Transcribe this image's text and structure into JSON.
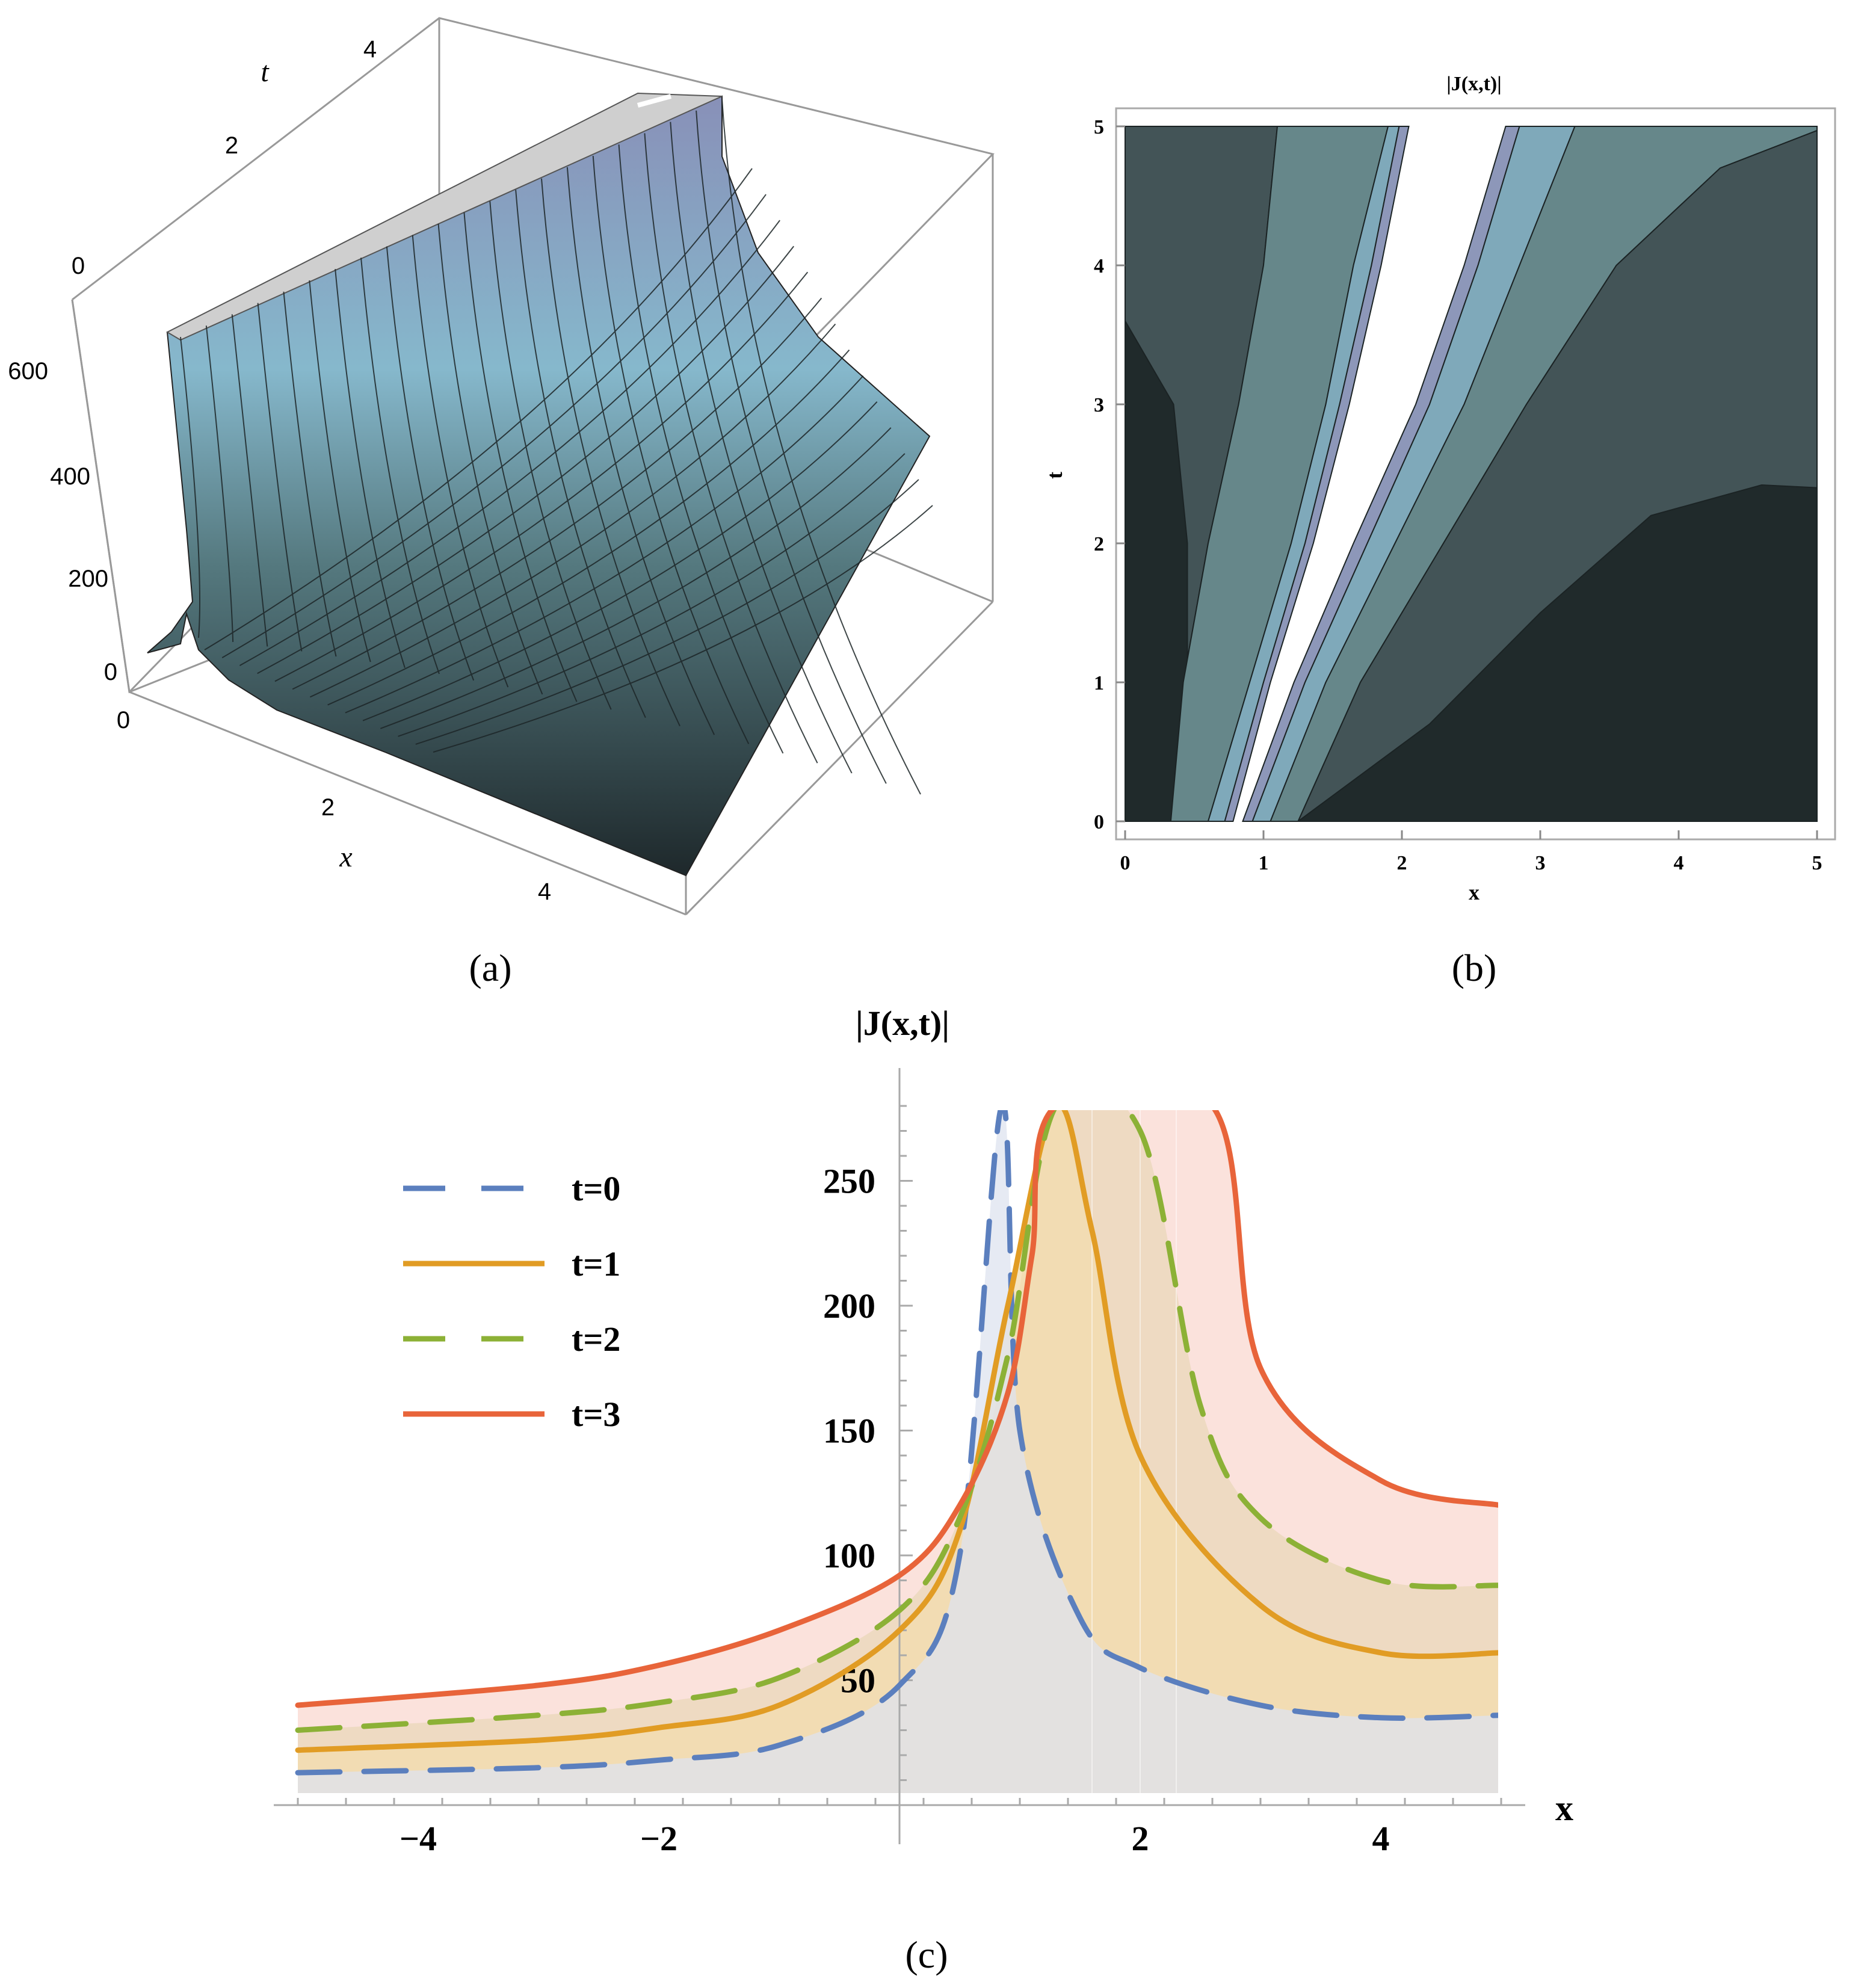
{
  "panels": {
    "a": {
      "label": "(a)"
    },
    "b": {
      "label": "(b)"
    },
    "c": {
      "label": "(c)"
    }
  },
  "chart_data": [
    {
      "id": "a",
      "type": "surface3d",
      "title": "",
      "xlabel": "x",
      "ylabel": "t",
      "zlabel": "",
      "x_ticks": [
        "0",
        "2",
        "4"
      ],
      "t_ticks": [
        "0",
        "2",
        "4"
      ],
      "z_ticks": [
        "0",
        "200",
        "400",
        "600"
      ],
      "xlim": [
        0,
        5
      ],
      "tlim": [
        0,
        5
      ],
      "zlim": [
        0,
        700
      ],
      "description_of_series": "|J(x,t)| surface, ridge rising near x≈0.8–1.8 across t"
    },
    {
      "id": "b",
      "type": "contour",
      "title": "|J(x,t)|",
      "xlabel": "x",
      "ylabel": "t",
      "x_ticks": [
        "0",
        "1",
        "2",
        "3",
        "4",
        "5"
      ],
      "y_ticks": [
        "0",
        "1",
        "2",
        "3",
        "4",
        "5"
      ],
      "xlim": [
        0,
        5
      ],
      "ylim": [
        0,
        5
      ]
    },
    {
      "id": "c",
      "type": "line",
      "title": "|J(x,t)|",
      "xlabel": "x",
      "ylabel": "",
      "xlim": [
        -5,
        5
      ],
      "ylim": [
        0,
        290
      ],
      "x_ticks": [
        "−4",
        "−2",
        "2",
        "4"
      ],
      "y_ticks": [
        "50",
        "100",
        "150",
        "200",
        "250"
      ],
      "legend_position": "top-left",
      "series": [
        {
          "name": "t=0",
          "style": "dashed",
          "color": "#5b7fbe",
          "fill": "#dde3ef",
          "x": [
            -5,
            -3,
            -2,
            -1,
            0,
            0.5,
            0.85,
            1.0,
            1.5,
            2,
            3,
            4,
            5
          ],
          "y": [
            13,
            15,
            18,
            24,
            48,
            100,
            280,
            150,
            75,
            55,
            40,
            35,
            36
          ]
        },
        {
          "name": "t=1",
          "style": "solid",
          "color": "#e19c24",
          "fill": "#f3dcae",
          "x": [
            -5,
            -3,
            -2,
            -1,
            0,
            0.5,
            0.9,
            1.3,
            1.6,
            2,
            3,
            4,
            5
          ],
          "y": [
            22,
            26,
            31,
            40,
            70,
            110,
            200,
            280,
            230,
            140,
            80,
            61,
            61
          ]
        },
        {
          "name": "t=2",
          "style": "dashed",
          "color": "#8cb136",
          "fill": "#ead7b9",
          "x": [
            -5,
            -3,
            -2,
            -1,
            0,
            0.5,
            0.9,
            1.3,
            2.0,
            2.5,
            3,
            4,
            5
          ],
          "y": [
            30,
            36,
            41,
            51,
            78,
            115,
            180,
            280,
            270,
            160,
            115,
            90,
            88
          ]
        },
        {
          "name": "t=3",
          "style": "solid",
          "color": "#e8643a",
          "fill": "#f9d8d0",
          "x": [
            -5,
            -3,
            -2,
            -1,
            0,
            0.5,
            0.9,
            1.1,
            1.3,
            2.6,
            3,
            4,
            5
          ],
          "y": [
            40,
            48,
            56,
            70,
            92,
            120,
            165,
            220,
            280,
            280,
            175,
            130,
            120
          ]
        }
      ]
    }
  ]
}
